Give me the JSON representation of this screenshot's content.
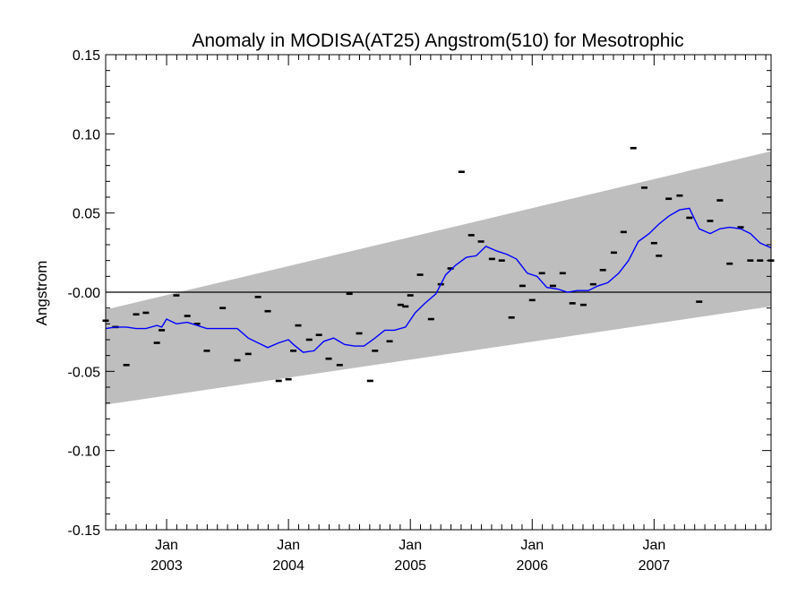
{
  "chart_data": {
    "type": "scatter",
    "title": "Anomaly in MODISA(AT25) Angstrom(510) for Mesotrophic",
    "ylabel": "Angstrom",
    "xlabel": "",
    "ylim": [
      -0.15,
      0.15
    ],
    "xlim": [
      2002.5,
      2007.96
    ],
    "grid": false,
    "yticks": [
      {
        "value": 0.15,
        "label": "0.15"
      },
      {
        "value": 0.1,
        "label": "0.10"
      },
      {
        "value": 0.05,
        "label": "0.05"
      },
      {
        "value": 0.0,
        "label": "-0.00"
      },
      {
        "value": -0.05,
        "label": "-0.05"
      },
      {
        "value": -0.1,
        "label": "-0.10"
      },
      {
        "value": -0.15,
        "label": "-0.15"
      }
    ],
    "xticks": [
      {
        "value": 2003.0,
        "month": "Jan",
        "year": "2003"
      },
      {
        "value": 2004.0,
        "month": "Jan",
        "year": "2004"
      },
      {
        "value": 2005.0,
        "month": "Jan",
        "year": "2005"
      },
      {
        "value": 2006.0,
        "month": "Jan",
        "year": "2006"
      },
      {
        "value": 2007.0,
        "month": "Jan",
        "year": "2007"
      }
    ],
    "band": {
      "color": "#bebebe",
      "x": [
        2002.5,
        2007.96
      ],
      "upper": [
        -0.011,
        0.089
      ],
      "lower": [
        -0.071,
        -0.009
      ]
    },
    "zero_line": 0.0,
    "series": [
      {
        "type": "scatter",
        "marker": "dash",
        "color": "#000000",
        "x": [
          2002.5,
          2002.58,
          2002.67,
          2002.75,
          2002.83,
          2002.92,
          2002.96,
          2003.08,
          2003.17,
          2003.25,
          2003.33,
          2003.46,
          2003.58,
          2003.67,
          2003.75,
          2003.83,
          2003.92,
          2004.0,
          2004.04,
          2004.08,
          2004.17,
          2004.25,
          2004.33,
          2004.42,
          2004.5,
          2004.58,
          2004.67,
          2004.71,
          2004.83,
          2004.92,
          2004.96,
          2005.0,
          2005.08,
          2005.17,
          2005.25,
          2005.33,
          2005.42,
          2005.5,
          2005.58,
          2005.67,
          2005.75,
          2005.83,
          2005.92,
          2006.0,
          2006.08,
          2006.17,
          2006.25,
          2006.33,
          2006.42,
          2006.5,
          2006.58,
          2006.67,
          2006.75,
          2006.83,
          2006.92,
          2007.0,
          2007.04,
          2007.12,
          2007.21,
          2007.29,
          2007.37,
          2007.46,
          2007.54,
          2007.62,
          2007.71,
          2007.79,
          2007.87,
          2007.96
        ],
        "y": [
          -0.018,
          -0.022,
          -0.046,
          -0.014,
          -0.013,
          -0.032,
          -0.024,
          -0.002,
          -0.015,
          -0.02,
          -0.037,
          -0.01,
          -0.043,
          -0.039,
          -0.003,
          -0.012,
          -0.056,
          -0.055,
          -0.037,
          -0.021,
          -0.03,
          -0.027,
          -0.042,
          -0.046,
          -0.001,
          -0.026,
          -0.056,
          -0.037,
          -0.031,
          -0.008,
          -0.009,
          -0.002,
          0.011,
          -0.017,
          0.005,
          0.015,
          0.076,
          0.036,
          0.032,
          0.021,
          0.02,
          -0.016,
          0.004,
          -0.005,
          0.012,
          0.004,
          0.012,
          -0.007,
          -0.008,
          0.005,
          0.014,
          0.025,
          0.038,
          0.091,
          0.066,
          0.031,
          0.023,
          0.059,
          0.061,
          0.047,
          -0.006,
          0.045,
          0.058,
          0.018,
          0.041,
          0.02,
          0.02,
          0.02
        ]
      },
      {
        "type": "line",
        "color": "#0000ff",
        "x": [
          2002.5,
          2002.58,
          2002.67,
          2002.75,
          2002.83,
          2002.92,
          2002.96,
          2003.0,
          2003.08,
          2003.17,
          2003.25,
          2003.33,
          2003.42,
          2003.5,
          2003.58,
          2003.67,
          2003.75,
          2003.83,
          2003.92,
          2004.0,
          2004.04,
          2004.12,
          2004.21,
          2004.29,
          2004.37,
          2004.46,
          2004.54,
          2004.62,
          2004.71,
          2004.79,
          2004.87,
          2004.96,
          2005.04,
          2005.12,
          2005.21,
          2005.29,
          2005.37,
          2005.46,
          2005.54,
          2005.62,
          2005.71,
          2005.79,
          2005.87,
          2005.96,
          2006.04,
          2006.12,
          2006.21,
          2006.29,
          2006.37,
          2006.46,
          2006.54,
          2006.62,
          2006.71,
          2006.79,
          2006.87,
          2006.96,
          2007.04,
          2007.12,
          2007.21,
          2007.29,
          2007.37,
          2007.46,
          2007.54,
          2007.62,
          2007.71,
          2007.79,
          2007.87,
          2007.96
        ],
        "y": [
          -0.023,
          -0.022,
          -0.022,
          -0.023,
          -0.023,
          -0.021,
          -0.022,
          -0.017,
          -0.02,
          -0.019,
          -0.021,
          -0.023,
          -0.023,
          -0.023,
          -0.023,
          -0.029,
          -0.032,
          -0.035,
          -0.032,
          -0.03,
          -0.033,
          -0.038,
          -0.037,
          -0.031,
          -0.029,
          -0.033,
          -0.034,
          -0.034,
          -0.029,
          -0.024,
          -0.024,
          -0.022,
          -0.013,
          -0.007,
          -0.001,
          0.011,
          0.017,
          0.022,
          0.023,
          0.029,
          0.026,
          0.024,
          0.021,
          0.012,
          0.01,
          0.003,
          0.002,
          0.0,
          0.001,
          0.001,
          0.004,
          0.006,
          0.012,
          0.02,
          0.032,
          0.037,
          0.043,
          0.048,
          0.052,
          0.053,
          0.04,
          0.037,
          0.04,
          0.041,
          0.04,
          0.037,
          0.031,
          0.028
        ]
      }
    ]
  }
}
